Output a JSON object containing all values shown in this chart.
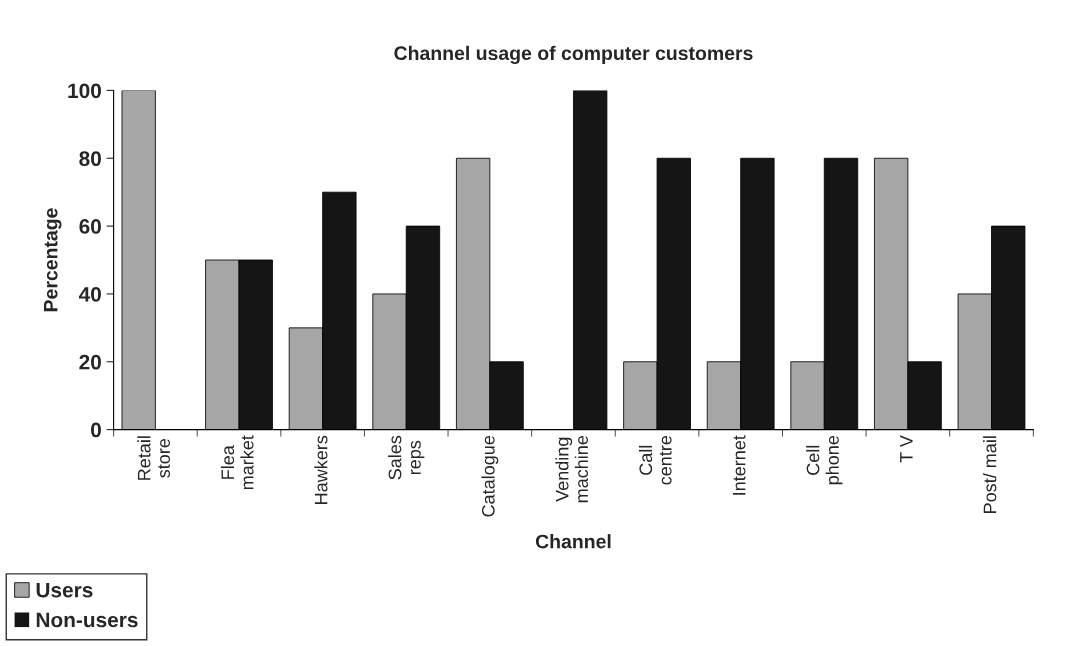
{
  "chart_data": {
    "type": "bar",
    "title": "Channel usage of computer customers",
    "xlabel": "Channel",
    "ylabel": "Percentage",
    "categories": [
      "Retail\nstore",
      "Flea\nmarket",
      "Hawkers",
      "Sales\nreps",
      "Catalogue",
      "Vending\nmachine",
      "Call\ncentre",
      "Internet",
      "Cell\nphone",
      "T V",
      "Post/ mail"
    ],
    "series": [
      {
        "name": "Users",
        "color": "#a6a6a6",
        "values": [
          100,
          50,
          30,
          40,
          80,
          0,
          20,
          20,
          20,
          80,
          40
        ]
      },
      {
        "name": "Non-users",
        "color": "#151515",
        "values": [
          0,
          50,
          70,
          60,
          20,
          100,
          80,
          80,
          80,
          20,
          60
        ]
      }
    ],
    "ylim": [
      0,
      100
    ],
    "yticks": [
      0,
      20,
      40,
      60,
      80,
      100
    ],
    "grid": false,
    "legend": "bottom left"
  }
}
